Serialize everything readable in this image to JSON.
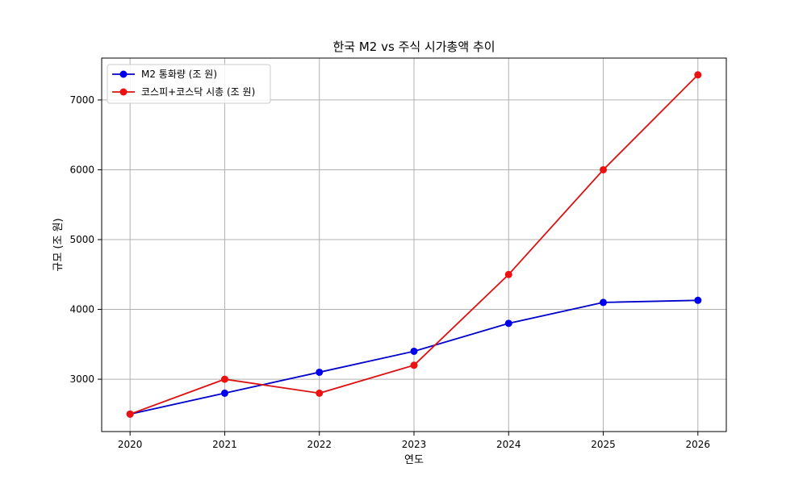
{
  "chart_data": {
    "type": "line",
    "title": "한국 M2 vs 주식 시가총액 추이",
    "xlabel": "연도",
    "ylabel": "규모 (조 원)",
    "x": [
      2020,
      2021,
      2022,
      2023,
      2024,
      2025,
      2026
    ],
    "xlim": [
      2019.7,
      2026.3
    ],
    "ylim": [
      2250,
      7600
    ],
    "yticks": [
      3000,
      4000,
      5000,
      6000,
      7000
    ],
    "grid": true,
    "legend_position": "top-left",
    "series": [
      {
        "name": "M2 통화량 (조 원)",
        "color": "#0000cc",
        "marker_color": "#0000ee",
        "values": [
          2500,
          2800,
          3100,
          3400,
          3800,
          4100,
          4130
        ]
      },
      {
        "name": "코스피+코스닥 시총 (조 원)",
        "color": "#dd1111",
        "marker_color": "#ee1111",
        "values": [
          2500,
          3000,
          2800,
          3200,
          4500,
          6000,
          7360
        ]
      }
    ]
  }
}
